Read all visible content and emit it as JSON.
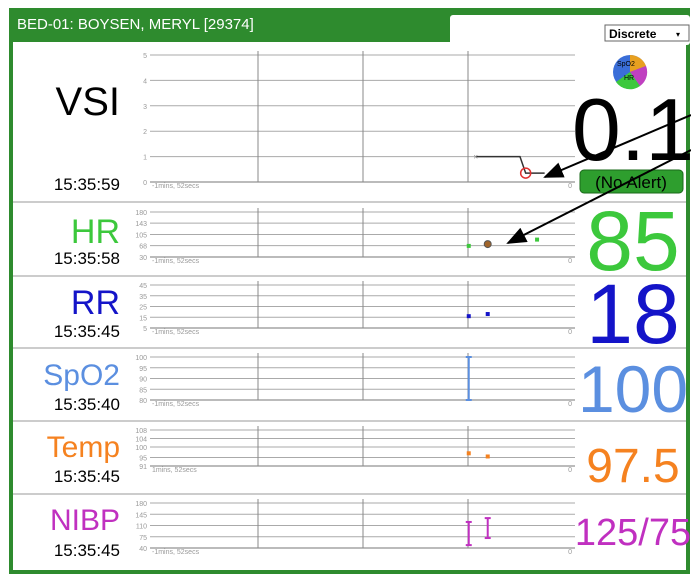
{
  "header": {
    "title": "BED-01: BOYSEN, MERYL [29374]",
    "mode": "Discrete"
  },
  "icon": {
    "labels": [
      "SpO2",
      "HR"
    ]
  },
  "rows": [
    {
      "label": "VSI",
      "time": "15:35:59",
      "value": 0.1,
      "status": "(No Alert)",
      "color": "#000000",
      "ylim": [
        0,
        5
      ],
      "yticks": [
        5,
        4,
        3,
        2,
        1,
        0
      ],
      "xlim": [
        -112,
        0
      ],
      "xticks": [
        {
          "value": -112,
          "label": "-1mins, 52secs"
        },
        0
      ],
      "line": {
        "x": [
          -26,
          -14.5,
          -13,
          -8
        ],
        "y": [
          1,
          1,
          0.35,
          0.35
        ]
      },
      "points": [
        {
          "x": -13,
          "y": 0.35,
          "color": "#e03030",
          "shape": "circle"
        }
      ]
    },
    {
      "label": "HR",
      "time": "15:35:58",
      "value": 85,
      "color": "#3cc83c",
      "ylim": [
        30,
        180
      ],
      "yticks": [
        180,
        143,
        105,
        68,
        30
      ],
      "xlim": [
        -112,
        0
      ],
      "xticks": [
        {
          "value": -112,
          "label": "-1mins, 52secs"
        },
        0
      ],
      "points": [
        {
          "x": -28,
          "y": 67,
          "color": "#3cc83c",
          "shape": "square"
        },
        {
          "x": -23,
          "y": 73,
          "color": "#a0642a",
          "shape": "dot"
        },
        {
          "x": -10,
          "y": 88,
          "color": "#3cc83c",
          "shape": "square"
        }
      ]
    },
    {
      "label": "RR",
      "time": "15:35:45",
      "value": 18,
      "color": "#1414c8",
      "ylim": [
        5,
        45
      ],
      "yticks": [
        45,
        35,
        25,
        15,
        5
      ],
      "xlim": [
        -112,
        0
      ],
      "xticks": [
        {
          "value": -112,
          "label": "-1mins, 52secs"
        },
        0
      ],
      "points": [
        {
          "x": -28,
          "y": 16,
          "color": "#1414c8",
          "shape": "square"
        },
        {
          "x": -23,
          "y": 18,
          "color": "#1414c8",
          "shape": "square"
        }
      ]
    },
    {
      "label": "SpO2",
      "time": "15:35:40",
      "value": 100,
      "color": "#5b8fe0",
      "ylim": [
        80,
        100
      ],
      "yticks": [
        100,
        95,
        90,
        85,
        80
      ],
      "xlim": [
        -112,
        0
      ],
      "xticks": [
        {
          "value": -112,
          "label": "-1mins, 52secs"
        },
        0
      ],
      "ranges": [
        {
          "x": -28,
          "high": 100,
          "low": 80,
          "color": "#5b8fe0"
        }
      ]
    },
    {
      "label": "Temp",
      "time": "15:35:45",
      "value": 97.5,
      "color": "#f58220",
      "ylim": [
        91,
        108
      ],
      "yticks": [
        108,
        104,
        100,
        95,
        91
      ],
      "xlim": [
        -112,
        0
      ],
      "xticks": [
        {
          "value": -112,
          "label": "1mins, 52secs"
        },
        0
      ],
      "points": [
        {
          "x": -28,
          "y": 97,
          "color": "#f58220",
          "shape": "square"
        },
        {
          "x": -23,
          "y": 95.5,
          "color": "#f58220",
          "shape": "square"
        }
      ]
    },
    {
      "label": "NIBP",
      "time": "15:35:45",
      "value": "125/75",
      "color": "#c030c0",
      "ylim": [
        40,
        180
      ],
      "yticks": [
        180,
        145,
        110,
        75,
        40
      ],
      "xlim": [
        -112,
        0
      ],
      "xticks": [
        {
          "value": -112,
          "label": "-1mins, 52secs"
        },
        0
      ],
      "ranges": [
        {
          "x": -28,
          "high": 121,
          "low": 49,
          "color": "#c030c0"
        },
        {
          "x": -23,
          "high": 133,
          "low": 71,
          "color": "#c030c0"
        }
      ]
    }
  ]
}
